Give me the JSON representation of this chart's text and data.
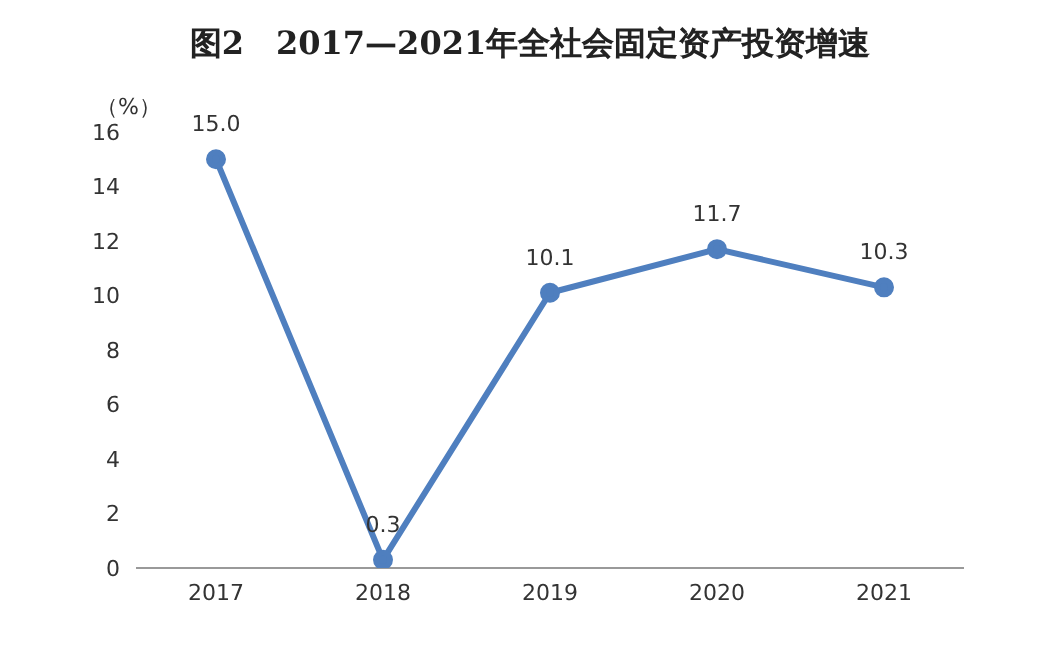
{
  "chart_data": {
    "type": "line",
    "title": "图2　2017—2021年全社会固定资产投资增速",
    "ylabel": "（%）",
    "categories": [
      "2017",
      "2018",
      "2019",
      "2020",
      "2021"
    ],
    "series": [
      {
        "color": "#4f7fbf",
        "values": [
          15.0,
          0.3,
          10.1,
          11.7,
          10.3
        ],
        "value_labels": [
          "15.0",
          "0.3",
          "10.1",
          "11.7",
          "10.3"
        ]
      }
    ],
    "ylim": [
      0,
      16
    ],
    "yticks": [
      0,
      2,
      4,
      6,
      8,
      10,
      12,
      14,
      16
    ],
    "grid": false,
    "legend": false,
    "marker": "circle",
    "line_style": "solid"
  }
}
